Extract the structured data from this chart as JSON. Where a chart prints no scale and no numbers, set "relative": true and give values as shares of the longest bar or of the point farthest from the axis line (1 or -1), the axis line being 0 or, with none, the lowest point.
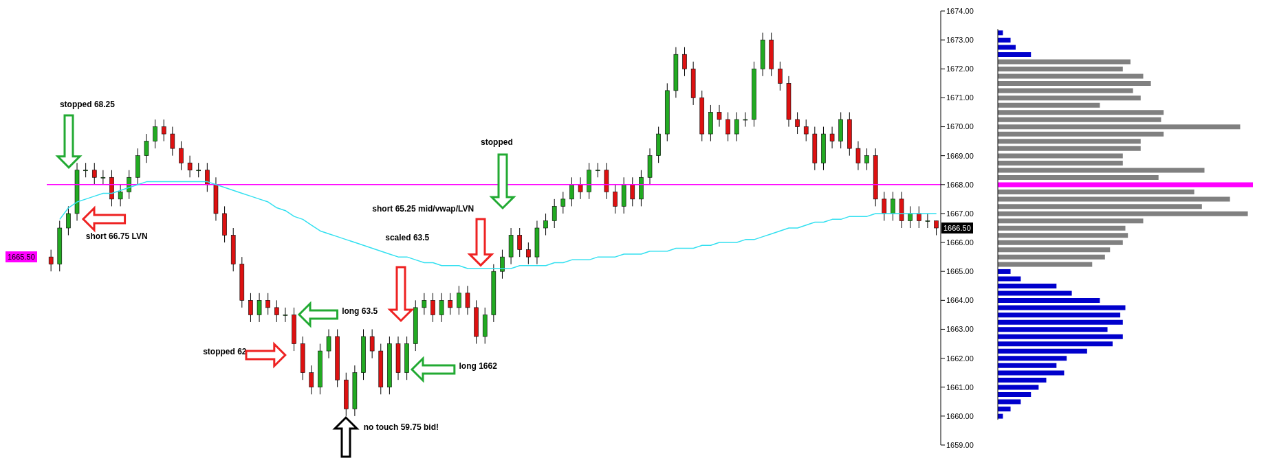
{
  "chart_data": [
    {
      "type": "candlestick",
      "tick_labels": "y",
      "categories": [
        null,
        null,
        null,
        null,
        null,
        null,
        null,
        null,
        null,
        null,
        null,
        null,
        null,
        null,
        null,
        null,
        null,
        null,
        null,
        null,
        null,
        null,
        null,
        null,
        null,
        null,
        null,
        null,
        null,
        null,
        null,
        null,
        null,
        null,
        null,
        null,
        null,
        null,
        null,
        null,
        null,
        null,
        null,
        null,
        null,
        null,
        null,
        null,
        null,
        null,
        null,
        null,
        null,
        null,
        null,
        null,
        null,
        null,
        null,
        null,
        null,
        null,
        null,
        null,
        null,
        null,
        null,
        null,
        null,
        null,
        null,
        null,
        null,
        null,
        null,
        null,
        null,
        null,
        null,
        null,
        null,
        null,
        null,
        null,
        null,
        null,
        null,
        null,
        null,
        null,
        null,
        null,
        null,
        null,
        null,
        null,
        null,
        null,
        null,
        null,
        null,
        null,
        null
      ],
      "ohlc": [
        [
          1665.5,
          1665.75,
          1665,
          1665.25
        ],
        [
          1665.25,
          1666.75,
          1665,
          1666.5
        ],
        [
          1666.5,
          1667.25,
          1666.25,
          1667
        ],
        [
          1667,
          1668.75,
          1666.75,
          1668.5
        ],
        [
          1668.5,
          1668.75,
          1668.25,
          1668.5
        ],
        [
          1668.5,
          1668.75,
          1668,
          1668.25
        ],
        [
          1668.25,
          1668.5,
          1668,
          1668.25
        ],
        [
          1668.25,
          1668.5,
          1667.25,
          1667.5
        ],
        [
          1667.5,
          1668,
          1667.25,
          1667.75
        ],
        [
          1667.75,
          1668.5,
          1667.5,
          1668.25
        ],
        [
          1668.25,
          1669.25,
          1668,
          1669
        ],
        [
          1669,
          1669.75,
          1668.75,
          1669.5
        ],
        [
          1669.5,
          1670.25,
          1669.25,
          1670
        ],
        [
          1670,
          1670.25,
          1669.5,
          1669.75
        ],
        [
          1669.75,
          1670,
          1669,
          1669.25
        ],
        [
          1669.25,
          1669.5,
          1668.5,
          1668.75
        ],
        [
          1668.75,
          1669,
          1668.25,
          1668.5
        ],
        [
          1668.5,
          1668.75,
          1668.25,
          1668.5
        ],
        [
          1668.5,
          1668.75,
          1667.75,
          1668
        ],
        [
          1668,
          1668.25,
          1666.75,
          1667
        ],
        [
          1667,
          1667.25,
          1666,
          1666.25
        ],
        [
          1666.25,
          1666.5,
          1665,
          1665.25
        ],
        [
          1665.25,
          1665.5,
          1663.75,
          1664
        ],
        [
          1664,
          1664.25,
          1663.25,
          1663.5
        ],
        [
          1663.5,
          1664.25,
          1663.25,
          1664
        ],
        [
          1664,
          1664.25,
          1663.5,
          1663.75
        ],
        [
          1663.75,
          1664,
          1663.25,
          1663.5
        ],
        [
          1663.5,
          1663.75,
          1663.25,
          1663.5
        ],
        [
          1663.5,
          1663.75,
          1662.25,
          1662.5
        ],
        [
          1662.5,
          1662.75,
          1661.25,
          1661.5
        ],
        [
          1661.5,
          1661.75,
          1660.75,
          1661
        ],
        [
          1661,
          1662.5,
          1660.75,
          1662.25
        ],
        [
          1662.25,
          1663,
          1662,
          1662.75
        ],
        [
          1662.75,
          1663,
          1661,
          1661.25
        ],
        [
          1661.25,
          1661.5,
          1660,
          1660.25
        ],
        [
          1660.25,
          1661.75,
          1660,
          1661.5
        ],
        [
          1661.5,
          1663,
          1661.25,
          1662.75
        ],
        [
          1662.75,
          1663,
          1662,
          1662.25
        ],
        [
          1662.25,
          1662.5,
          1660.75,
          1661
        ],
        [
          1661,
          1662.75,
          1660.75,
          1662.5
        ],
        [
          1662.5,
          1662.75,
          1661.25,
          1661.5
        ],
        [
          1661.5,
          1662.75,
          1661.25,
          1662.5
        ],
        [
          1662.5,
          1664,
          1662.25,
          1663.75
        ],
        [
          1663.75,
          1664.25,
          1663.5,
          1664
        ],
        [
          1664,
          1664.25,
          1663.25,
          1663.5
        ],
        [
          1663.5,
          1664.25,
          1663.25,
          1664
        ],
        [
          1664,
          1664.25,
          1663.5,
          1663.75
        ],
        [
          1663.75,
          1664.5,
          1663.5,
          1664.25
        ],
        [
          1664.25,
          1664.5,
          1663.5,
          1663.75
        ],
        [
          1663.75,
          1664,
          1662.5,
          1662.75
        ],
        [
          1662.75,
          1663.75,
          1662.5,
          1663.5
        ],
        [
          1663.5,
          1665.25,
          1663.25,
          1665
        ],
        [
          1665,
          1665.75,
          1664.75,
          1665.5
        ],
        [
          1665.5,
          1666.5,
          1665.25,
          1666.25
        ],
        [
          1666.25,
          1666.5,
          1665.5,
          1665.75
        ],
        [
          1665.75,
          1666,
          1665.25,
          1665.5
        ],
        [
          1665.5,
          1666.75,
          1665.25,
          1666.5
        ],
        [
          1666.5,
          1667,
          1666.25,
          1666.75
        ],
        [
          1666.75,
          1667.5,
          1666.5,
          1667.25
        ],
        [
          1667.25,
          1667.75,
          1667,
          1667.5
        ],
        [
          1667.5,
          1668.25,
          1667.25,
          1668
        ],
        [
          1668,
          1668.25,
          1667.5,
          1667.75
        ],
        [
          1667.75,
          1668.75,
          1667.5,
          1668.5
        ],
        [
          1668.5,
          1668.75,
          1668.25,
          1668.5
        ],
        [
          1668.5,
          1668.75,
          1667.5,
          1667.75
        ],
        [
          1667.75,
          1668,
          1667,
          1667.25
        ],
        [
          1667.25,
          1668.25,
          1667,
          1668
        ],
        [
          1668,
          1668.25,
          1667.25,
          1667.5
        ],
        [
          1667.5,
          1668.5,
          1667.25,
          1668.25
        ],
        [
          1668.25,
          1669.25,
          1668,
          1669
        ],
        [
          1669,
          1670,
          1668.75,
          1669.75
        ],
        [
          1669.75,
          1671.5,
          1669.5,
          1671.25
        ],
        [
          1671.25,
          1672.75,
          1671,
          1672.5
        ],
        [
          1672.5,
          1672.75,
          1671.75,
          1672
        ],
        [
          1672,
          1672.25,
          1670.75,
          1671
        ],
        [
          1671,
          1671.25,
          1669.5,
          1669.75
        ],
        [
          1669.75,
          1670.75,
          1669.5,
          1670.5
        ],
        [
          1670.5,
          1670.75,
          1670,
          1670.25
        ],
        [
          1670.25,
          1670.5,
          1669.5,
          1669.75
        ],
        [
          1669.75,
          1670.5,
          1669.5,
          1670.25
        ],
        [
          1670.25,
          1670.5,
          1670,
          1670.25
        ],
        [
          1670.25,
          1672.25,
          1670,
          1672
        ],
        [
          1672,
          1673.25,
          1671.75,
          1673
        ],
        [
          1673,
          1673.25,
          1671.75,
          1672
        ],
        [
          1672,
          1672.25,
          1671.25,
          1671.5
        ],
        [
          1671.5,
          1671.75,
          1670,
          1670.25
        ],
        [
          1670.25,
          1670.5,
          1669.75,
          1670
        ],
        [
          1670,
          1670.25,
          1669.5,
          1669.75
        ],
        [
          1669.75,
          1670,
          1668.5,
          1668.75
        ],
        [
          1668.75,
          1670,
          1668.5,
          1669.75
        ],
        [
          1669.75,
          1670,
          1669.25,
          1669.5
        ],
        [
          1669.5,
          1670.5,
          1669.25,
          1670.25
        ],
        [
          1670.25,
          1670.5,
          1669,
          1669.25
        ],
        [
          1669.25,
          1669.5,
          1668.5,
          1668.75
        ],
        [
          1668.75,
          1669.25,
          1668.5,
          1669
        ],
        [
          1669,
          1669.25,
          1667.25,
          1667.5
        ],
        [
          1667.5,
          1667.75,
          1666.75,
          1667
        ],
        [
          1667,
          1667.75,
          1666.75,
          1667.5
        ],
        [
          1667.5,
          1667.75,
          1666.5,
          1666.75
        ],
        [
          1666.75,
          1667.25,
          1666.5,
          1667
        ],
        [
          1667,
          1667.25,
          1666.5,
          1666.75
        ],
        [
          1666.75,
          1667,
          1666.5,
          1666.75
        ],
        [
          1666.75,
          1666.75,
          1666.25,
          1666.5
        ]
      ],
      "series": [
        {
          "type": "line",
          "color": "#33e0f0",
          "values": [
            null,
            1666.8,
            1667.2,
            1667.4,
            1667.5,
            1667.6,
            1667.7,
            1667.7,
            1667.8,
            1667.9,
            1668.0,
            1668.1,
            1668.1,
            1668.1,
            1668.1,
            1668.1,
            1668.1,
            1668.1,
            1668.1,
            1668.0,
            1667.9,
            1667.8,
            1667.7,
            1667.6,
            1667.5,
            1667.4,
            1667.2,
            1667.1,
            1666.9,
            1666.8,
            1666.6,
            1666.4,
            1666.3,
            1666.2,
            1666.1,
            1666.0,
            1665.9,
            1665.8,
            1665.7,
            1665.6,
            1665.5,
            1665.5,
            1665.4,
            1665.3,
            1665.3,
            1665.2,
            1665.2,
            1665.2,
            1665.1,
            1665.1,
            1665.1,
            1665.1,
            1665.1,
            1665.1,
            1665.2,
            1665.2,
            1665.2,
            1665.2,
            1665.3,
            1665.3,
            1665.4,
            1665.4,
            1665.4,
            1665.5,
            1665.5,
            1665.5,
            1665.6,
            1665.6,
            1665.6,
            1665.7,
            1665.7,
            1665.7,
            1665.8,
            1665.8,
            1665.8,
            1665.9,
            1665.9,
            1666.0,
            1666.0,
            1666.0,
            1666.1,
            1666.1,
            1666.2,
            1666.3,
            1666.4,
            1666.5,
            1666.5,
            1666.6,
            1666.7,
            1666.7,
            1666.8,
            1666.8,
            1666.9,
            1666.9,
            1666.9,
            1667.0,
            1667.0,
            1667.0,
            1667.0,
            1667.0,
            1667.0,
            1667.0,
            1667.0
          ]
        }
      ],
      "ylim": [
        1659,
        1674
      ],
      "yticks": [
        {
          "value": 1659,
          "label": "1659.00"
        },
        {
          "value": 1660,
          "label": "1660.00"
        },
        {
          "value": 1661,
          "label": "1661.00"
        },
        {
          "value": 1662,
          "label": "1662.00"
        },
        {
          "value": 1663,
          "label": "1663.00"
        },
        {
          "value": 1664,
          "label": "1664.00"
        },
        {
          "value": 1665,
          "label": "1665.00"
        },
        {
          "value": 1666,
          "label": "1666.00"
        },
        {
          "value": 1667,
          "label": "1667.00"
        },
        {
          "value": 1668,
          "label": "1668.00"
        },
        {
          "value": 1669,
          "label": "1669.00"
        },
        {
          "value": 1670,
          "label": "1670.00"
        },
        {
          "value": 1671,
          "label": "1671.00"
        },
        {
          "value": 1672,
          "label": "1672.00"
        },
        {
          "value": 1673,
          "label": "1673.00"
        },
        {
          "value": 1674,
          "label": "1674.00"
        }
      ],
      "ref_lines": [
        {
          "axis": "y",
          "value": 1668,
          "color": "#ff00ff"
        }
      ],
      "annotations": [
        "stopped 68.25",
        "short 66.75 LVN",
        "stopped 62",
        "long 63.5",
        "no touch 59.75 bid!",
        "long 1662",
        "scaled 63.5",
        "short 65.25 mid/vwap/LVN",
        "stopped",
        "1666.50",
        "1665.50"
      ]
    },
    {
      "type": "bar",
      "orientation": "horizontal",
      "relative": true,
      "tick_labels": false,
      "categories": [
        null,
        null,
        null,
        null,
        null,
        null,
        null,
        null,
        null,
        null,
        null,
        null,
        null,
        null,
        null,
        null,
        null,
        null,
        null,
        null,
        null,
        null,
        null,
        null,
        null,
        null,
        null,
        null,
        null,
        null,
        null,
        null,
        null,
        null,
        null,
        null,
        null,
        null,
        null,
        null,
        null,
        null,
        null,
        null,
        null,
        null,
        null,
        null,
        null,
        null,
        null,
        null,
        null,
        null
      ],
      "values": [
        0.02,
        0.05,
        0.07,
        0.13,
        0.52,
        0.49,
        0.57,
        0.6,
        0.53,
        0.56,
        0.4,
        0.65,
        0.64,
        0.95,
        0.65,
        0.56,
        0.56,
        0.49,
        0.49,
        0.81,
        0.63,
        1,
        0.77,
        0.91,
        0.8,
        0.98,
        0.57,
        0.5,
        0.51,
        0.49,
        0.44,
        0.42,
        0.37,
        0.05,
        0.09,
        0.23,
        0.29,
        0.4,
        0.5,
        0.48,
        0.49,
        0.43,
        0.49,
        0.45,
        0.35,
        0.27,
        0.23,
        0.26,
        0.19,
        0.16,
        0.13,
        0.09,
        0.05,
        0.02
      ],
      "colors": [
        "#0000cc",
        "#0000cc",
        "#0000cc",
        "#0000cc",
        "#808080",
        "#808080",
        "#808080",
        "#808080",
        "#808080",
        "#808080",
        "#808080",
        "#808080",
        "#808080",
        "#808080",
        "#808080",
        "#808080",
        "#808080",
        "#808080",
        "#808080",
        "#808080",
        "#808080",
        "#ff00ff",
        "#808080",
        "#808080",
        "#808080",
        "#808080",
        "#808080",
        "#808080",
        "#808080",
        "#808080",
        "#808080",
        "#808080",
        "#808080",
        "#0000cc",
        "#0000cc",
        "#0000cc",
        "#0000cc",
        "#0000cc",
        "#0000cc",
        "#0000cc",
        "#0000cc",
        "#0000cc",
        "#0000cc",
        "#0000cc",
        "#0000cc",
        "#0000cc",
        "#0000cc",
        "#0000cc",
        "#0000cc",
        "#0000cc",
        "#0000cc",
        "#0000cc",
        "#0000cc",
        "#0000cc"
      ]
    }
  ]
}
